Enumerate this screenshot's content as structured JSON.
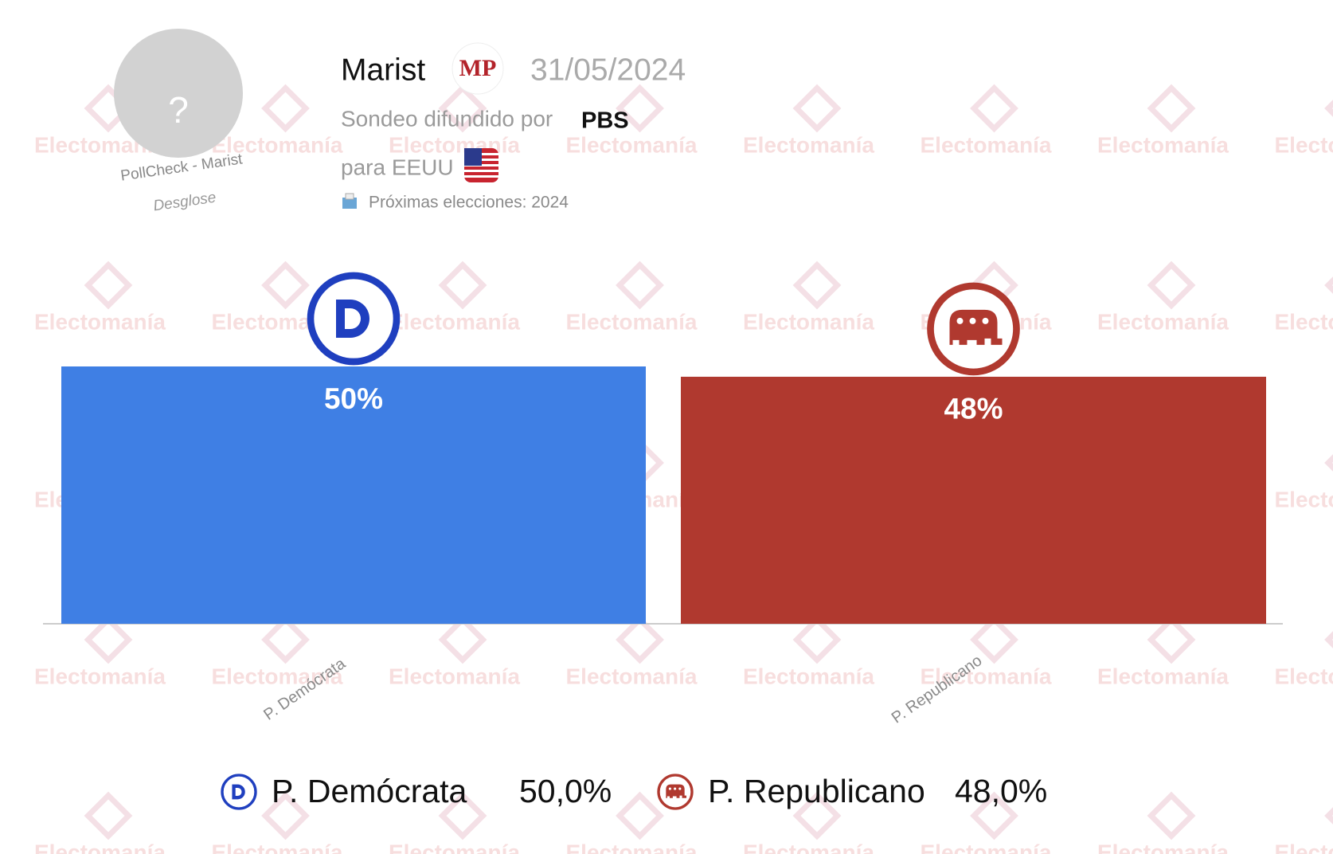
{
  "header": {
    "pollster": "Marist",
    "source_logo": "MP",
    "date": "31/05/2024",
    "published_by_label": "Sondeo difundido por",
    "published_by": "PBS",
    "for_label": "para EEUU",
    "next_elections": "Próximas elecciones: 2024",
    "avatar_placeholder": "?",
    "avatar_caption": "PollCheck - Marist",
    "avatar_link": "Desglose"
  },
  "watermark": "Electomanía",
  "chart_data": {
    "type": "bar",
    "categories": [
      "P. Demócrata",
      "P. Republicano"
    ],
    "values": [
      50,
      48
    ],
    "value_labels": [
      "50%",
      "48%"
    ],
    "colors": [
      "#3f7fe4",
      "#b0392f"
    ],
    "legend_value_labels": [
      "50,0%",
      "48,0%"
    ]
  }
}
